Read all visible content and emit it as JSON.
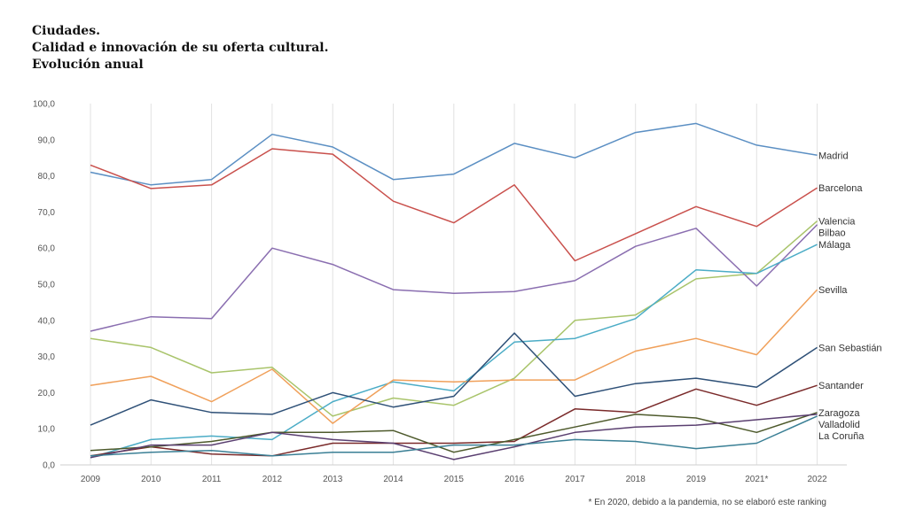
{
  "title_lines": [
    "Ciudades.",
    "Calidad e innovación de su oferta cultural.",
    "Evolución anual"
  ],
  "footnote": "* En 2020, debido a la pandemia, no se elaboró este ranking",
  "chart_data": {
    "type": "line",
    "title": "Ciudades. Calidad e innovación de su oferta cultural. Evolución anual",
    "xlabel": "",
    "ylabel": "",
    "ylim": [
      0,
      100
    ],
    "yticks": [
      "0,0",
      "10,0",
      "20,0",
      "30,0",
      "40,0",
      "50,0",
      "60,0",
      "70,0",
      "80,0",
      "90,0",
      "100,0"
    ],
    "categories": [
      "2009",
      "2010",
      "2011",
      "2012",
      "2013",
      "2014",
      "2015",
      "2016",
      "2017",
      "2018",
      "2019",
      "2021*",
      "2022"
    ],
    "grid": "vertical",
    "legend": "right-end labels",
    "series": [
      {
        "name": "Madrid",
        "color": "#5b8fc3",
        "values": [
          81.0,
          77.5,
          79.0,
          91.5,
          88.0,
          79.0,
          80.5,
          89.0,
          85.0,
          92.0,
          94.5,
          88.5,
          85.7
        ]
      },
      {
        "name": "Barcelona",
        "color": "#c9504c",
        "values": [
          83.0,
          76.5,
          77.5,
          87.5,
          86.0,
          73.0,
          67.0,
          77.5,
          56.5,
          64.0,
          71.5,
          66.0,
          76.7
        ]
      },
      {
        "name": "Valencia",
        "color": "#a9c46b",
        "values": [
          35.0,
          32.5,
          25.5,
          27.0,
          13.5,
          18.5,
          16.5,
          24.0,
          40.0,
          41.5,
          51.5,
          53.0,
          67.5
        ]
      },
      {
        "name": "Bilbao",
        "color": "#8a6eb0",
        "values": [
          37.0,
          41.0,
          40.5,
          60.0,
          55.5,
          48.5,
          47.5,
          48.0,
          51.0,
          60.5,
          65.5,
          49.5,
          66.5
        ]
      },
      {
        "name": "Málaga",
        "color": "#4bacc6",
        "values": [
          2.0,
          7.0,
          8.0,
          7.0,
          17.5,
          23.0,
          20.5,
          34.0,
          35.0,
          40.5,
          54.0,
          53.0,
          61.0
        ]
      },
      {
        "name": "Sevilla",
        "color": "#f0a05a",
        "values": [
          22.0,
          24.5,
          17.5,
          26.5,
          11.5,
          23.5,
          23.0,
          23.5,
          23.5,
          31.5,
          35.0,
          30.5,
          48.5
        ]
      },
      {
        "name": "San Sebastián",
        "color": "#2e5077",
        "values": [
          11.0,
          18.0,
          14.5,
          14.0,
          20.0,
          16.0,
          19.0,
          36.5,
          19.0,
          22.5,
          24.0,
          21.5,
          32.5
        ]
      },
      {
        "name": "Santander",
        "color": "#7a2a2a",
        "values": [
          2.5,
          5.0,
          3.0,
          2.5,
          6.0,
          6.0,
          6.0,
          6.5,
          15.5,
          14.5,
          21.0,
          16.5,
          22.0
        ]
      },
      {
        "name": "Zaragoza",
        "color": "#4e5a2c",
        "values": [
          4.0,
          5.0,
          6.5,
          9.0,
          9.0,
          9.5,
          3.5,
          7.0,
          10.5,
          14.0,
          13.0,
          9.0,
          14.5
        ]
      },
      {
        "name": "Valladolid",
        "color": "#5a3f70",
        "values": [
          2.0,
          5.5,
          5.5,
          9.0,
          7.0,
          6.0,
          1.5,
          5.0,
          9.0,
          10.5,
          11.0,
          12.5,
          14.0
        ]
      },
      {
        "name": "La Coruña",
        "color": "#3a7f95",
        "values": [
          2.5,
          3.5,
          4.0,
          2.5,
          3.5,
          3.5,
          5.5,
          5.5,
          7.0,
          6.5,
          4.5,
          6.0,
          13.5
        ]
      }
    ]
  }
}
